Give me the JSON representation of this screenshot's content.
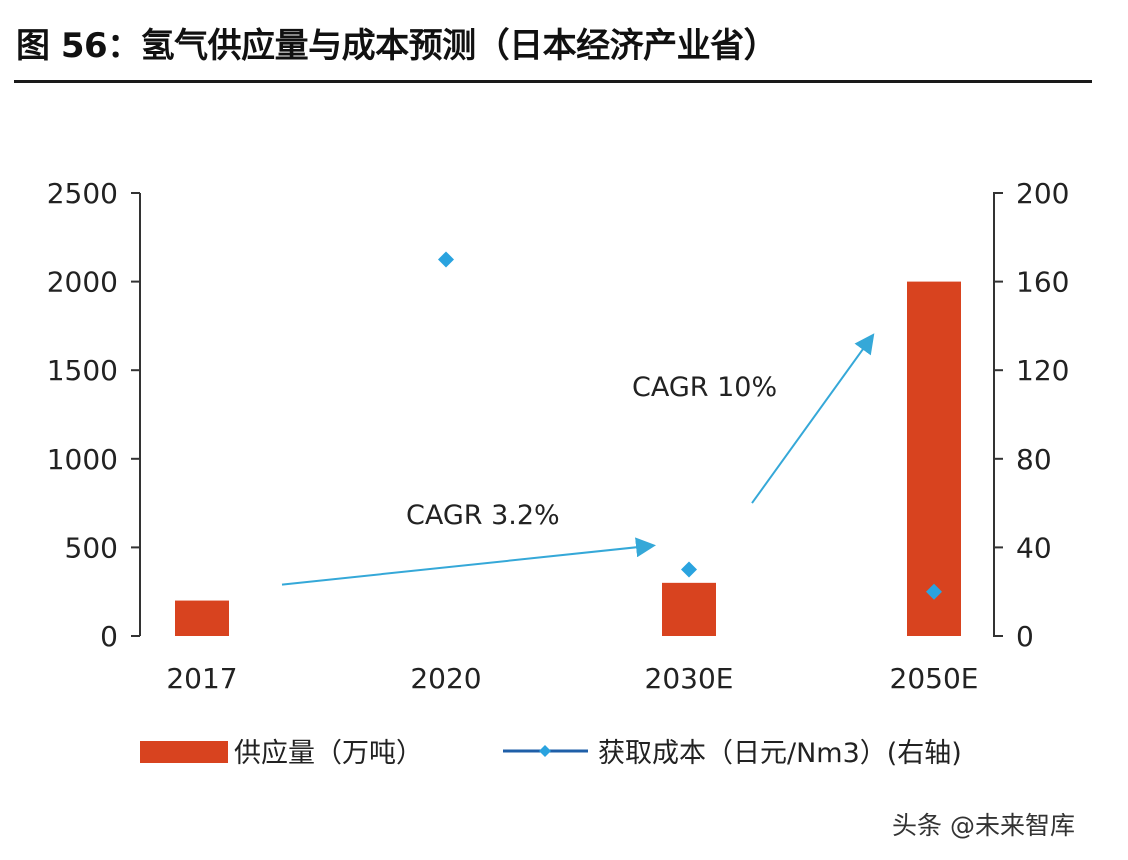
{
  "title": "图 56：氢气供应量与成本预测（日本经济产业省）",
  "watermark": "头条 @未来智库",
  "colors": {
    "bar": "#d8431f",
    "cost": "#2aa3df",
    "arrow": "#35a8d8",
    "axis": "#333333"
  },
  "chart_data": {
    "type": "bar",
    "categories": [
      "2017",
      "2020",
      "2030E",
      "2050E"
    ],
    "series": [
      {
        "name": "供应量（万吨）",
        "type": "bar",
        "axis": "left",
        "values": [
          200,
          null,
          300,
          2000
        ]
      },
      {
        "name": "获取成本（日元/Nm3）(右轴)",
        "type": "scatter",
        "axis": "right",
        "values": [
          null,
          170,
          30,
          20
        ]
      }
    ],
    "y_left": {
      "ylim": [
        0,
        2500
      ],
      "ticks": [
        "0",
        "500",
        "1000",
        "1500",
        "2000",
        "2500"
      ]
    },
    "y_right": {
      "ylim": [
        0,
        200
      ],
      "ticks": [
        "0",
        "40",
        "80",
        "120",
        "160",
        "200"
      ]
    },
    "annotations": [
      {
        "text": "CAGR 3.2%",
        "from": [
          "2017",
          290
        ],
        "to": [
          "2030E",
          510
        ]
      },
      {
        "text": "CAGR 10%",
        "from": [
          "2030E",
          750
        ],
        "to": [
          "2050E",
          1690
        ]
      }
    ],
    "legend_position": "bottom",
    "grid": false
  }
}
